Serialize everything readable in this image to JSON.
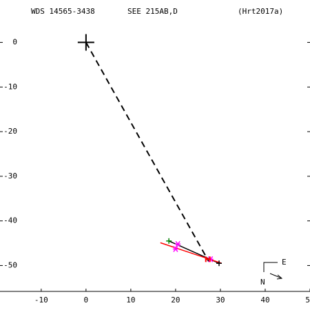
{
  "chart_data": {
    "type": "scatter",
    "title": "WDS 14565-3438",
    "subtitle": "SEE 215AB,D",
    "reference": "(Hrt2017a)",
    "compass": {
      "east": "E",
      "north": "N"
    },
    "xlim": [
      -19.2,
      50
    ],
    "ylim": [
      -55.8,
      9.5
    ],
    "xticks": [
      -10,
      0,
      10,
      20,
      30,
      40,
      50
    ],
    "yticks": [
      0,
      -10,
      -20,
      -30,
      -40,
      -50
    ],
    "series": [
      {
        "marker": "plus-large",
        "color": "#000000",
        "x": [
          0
        ],
        "values": [
          0
        ]
      },
      {
        "marker": "plus",
        "color": "#008000",
        "x": [
          18.5
        ],
        "values": [
          -44.5
        ]
      },
      {
        "marker": "star",
        "color": "#ff00ff",
        "x": [
          20.5,
          20,
          27.8
        ],
        "values": [
          -45.2,
          -46.3,
          -48.6
        ]
      },
      {
        "marker": "h",
        "color": "#ff0000",
        "x": [
          27.2
        ],
        "values": [
          -48.6
        ]
      },
      {
        "marker": "plus",
        "color": "#000000",
        "x": [
          29.7
        ],
        "values": [
          -49.5
        ]
      }
    ],
    "lines": [
      {
        "style": "dashed",
        "color": "#000000",
        "x": [
          0,
          27.4
        ],
        "values": [
          0,
          -49.1
        ]
      },
      {
        "style": "solid",
        "color": "#000000",
        "x": [
          18.5,
          29.7
        ],
        "values": [
          -44.5,
          -49.5
        ]
      },
      {
        "style": "solid",
        "color": "#ff0000",
        "x": [
          16.6,
          30.3
        ],
        "values": [
          -44.9,
          -49.5
        ]
      }
    ]
  }
}
